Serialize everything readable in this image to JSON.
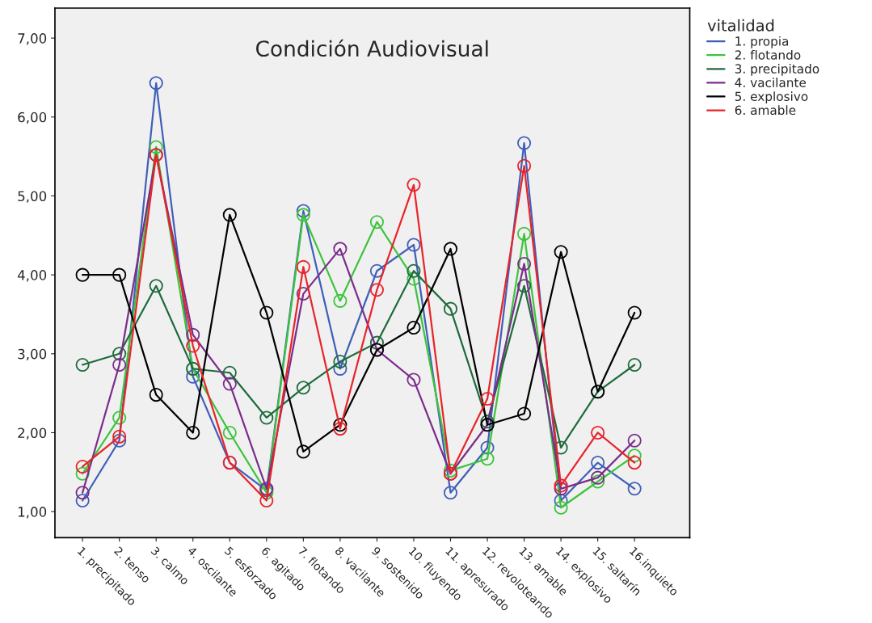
{
  "chart_data": {
    "type": "line",
    "title": "Condición Audiovisual",
    "legend_title": "vitalidad",
    "categories": [
      "1. precipitado",
      "2. tenso",
      "3. calmo",
      "4. oscilante",
      "5. esforzado",
      "6. agitado",
      "7. flotando",
      "8. vacilante",
      "9. sostenido",
      "10. fluyendo",
      "11. apresurado",
      "12. revoloteando",
      "13. amable",
      "14. explosivo",
      "15. saltarín",
      "16.inquieto"
    ],
    "series": [
      {
        "name": "1. propia",
        "color": "#3f5fb8",
        "values": [
          1.14,
          1.9,
          6.43,
          2.71,
          1.62,
          1.27,
          4.81,
          2.81,
          4.05,
          4.38,
          1.24,
          1.81,
          5.67,
          1.14,
          1.62,
          1.29
        ]
      },
      {
        "name": "2. flotando",
        "color": "#3cc43c",
        "values": [
          1.48,
          2.19,
          5.62,
          2.81,
          2.0,
          1.24,
          4.76,
          3.67,
          4.67,
          3.95,
          1.52,
          1.67,
          4.52,
          1.05,
          1.38,
          1.71
        ]
      },
      {
        "name": "3. precipitado",
        "color": "#1e6b3c",
        "values": [
          2.86,
          3.0,
          3.86,
          2.81,
          2.76,
          2.19,
          2.57,
          2.9,
          3.14,
          4.05,
          3.57,
          2.14,
          3.86,
          1.81,
          2.52,
          2.86
        ]
      },
      {
        "name": "4. vacilante",
        "color": "#7b2d8b",
        "values": [
          1.24,
          2.86,
          5.52,
          3.24,
          2.62,
          1.29,
          3.76,
          4.33,
          3.05,
          2.67,
          1.48,
          2.1,
          4.14,
          1.29,
          1.43,
          1.9
        ]
      },
      {
        "name": "5. explosivo",
        "color": "#000000",
        "values": [
          4.0,
          4.0,
          2.48,
          2.0,
          4.76,
          3.52,
          1.76,
          2.1,
          3.05,
          3.33,
          4.33,
          2.1,
          2.24,
          4.29,
          2.52,
          3.52
        ]
      },
      {
        "name": "6. amable",
        "color": "#e8242a",
        "values": [
          1.57,
          1.95,
          5.52,
          3.1,
          1.62,
          1.14,
          4.1,
          2.05,
          3.81,
          5.14,
          1.48,
          2.43,
          5.38,
          1.33,
          2.0,
          1.62
        ]
      }
    ],
    "ylim": [
      0.67,
      7.38
    ],
    "yticks": [
      {
        "value": 1,
        "label": "1,00"
      },
      {
        "value": 2,
        "label": "2,00"
      },
      {
        "value": 3,
        "label": "3,00"
      },
      {
        "value": 4,
        "label": "4,00"
      },
      {
        "value": 5,
        "label": "5,00"
      },
      {
        "value": 6,
        "label": "6,00"
      },
      {
        "value": 7,
        "label": "7,00"
      }
    ],
    "marker": "circle",
    "line_style": "solid",
    "grid": false,
    "legend": "top right"
  }
}
